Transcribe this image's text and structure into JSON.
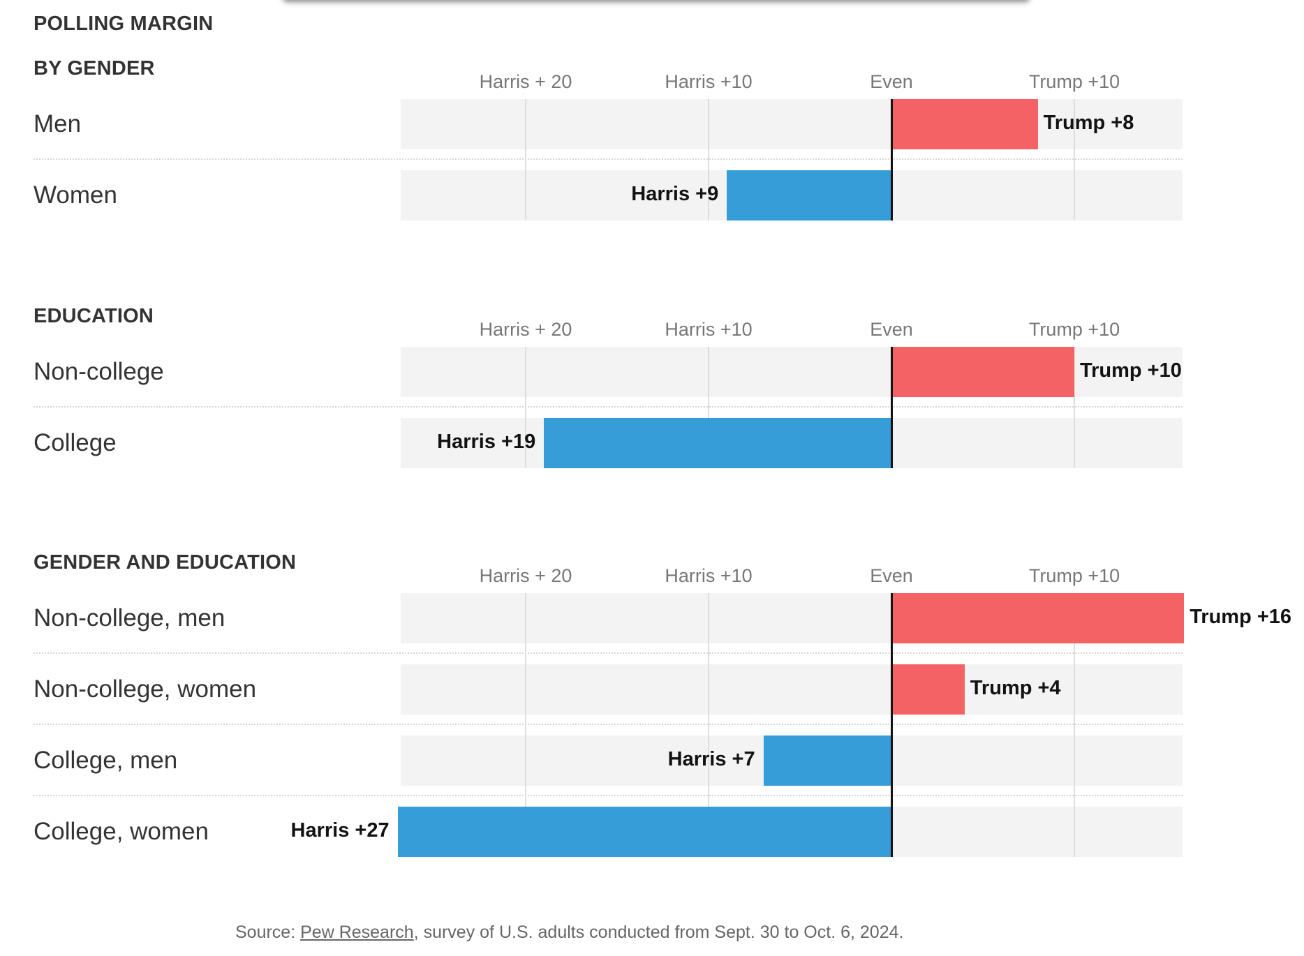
{
  "title": "POLLING MARGIN",
  "axis_ticks": [
    {
      "label": "Harris + 20",
      "value": -20
    },
    {
      "label": "Harris +10",
      "value": -10
    },
    {
      "label": "Even",
      "value": 0
    },
    {
      "label": "Trump +10",
      "value": 10
    }
  ],
  "colors": {
    "harris": "#369dd8",
    "trump": "#f46265",
    "track": "#f3f3f3",
    "grid": "#dedede"
  },
  "chart_data": {
    "type": "bar",
    "orientation": "horizontal diverging",
    "xlim": [
      -27,
      16
    ],
    "grid": true,
    "groups": [
      {
        "title": "BY GENDER",
        "rows": [
          {
            "label": "Men",
            "value": 8,
            "value_label": "Trump +8"
          },
          {
            "label": "Women",
            "value": -9,
            "value_label": "Harris +9"
          }
        ]
      },
      {
        "title": "EDUCATION",
        "rows": [
          {
            "label": "Non-college",
            "value": 10,
            "value_label": "Trump +10"
          },
          {
            "label": "College",
            "value": -19,
            "value_label": "Harris +19"
          }
        ]
      },
      {
        "title": "GENDER AND EDUCATION",
        "rows": [
          {
            "label": "Non-college, men",
            "value": 16,
            "value_label": "Trump +16"
          },
          {
            "label": "Non-college, women",
            "value": 4,
            "value_label": "Trump +4"
          },
          {
            "label": "College, men",
            "value": -7,
            "value_label": "Harris +7"
          },
          {
            "label": "College, women",
            "value": -27,
            "value_label": "Harris +27"
          }
        ]
      }
    ]
  },
  "source": {
    "prefix": "Source: ",
    "link_text": "Pew Research",
    "suffix": ", survey of U.S. adults conducted from Sept. 30 to Oct. 6, 2024."
  }
}
